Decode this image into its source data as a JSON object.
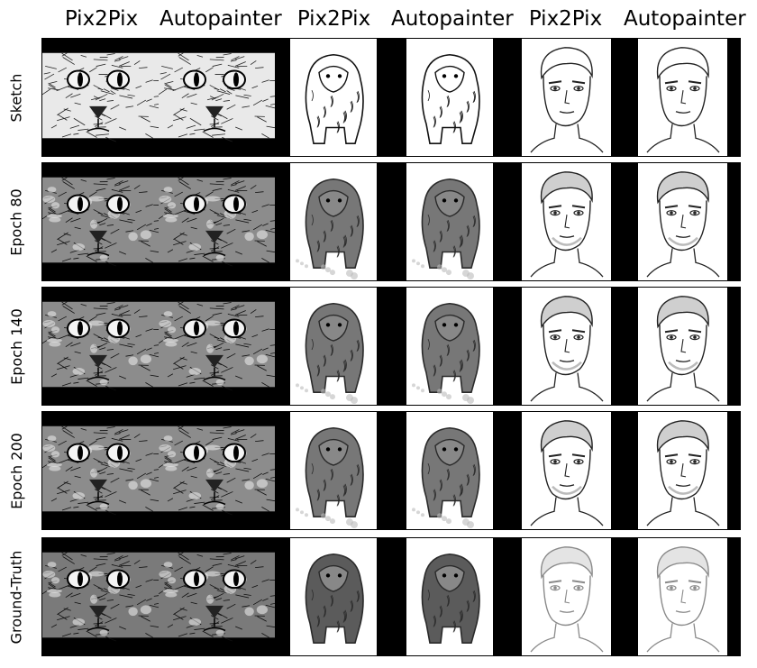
{
  "columns": [
    {
      "title": "Pix2Pix",
      "subject": "cat"
    },
    {
      "title": "Autopainter",
      "subject": "cat"
    },
    {
      "title": "Pix2Pix",
      "subject": "beast"
    },
    {
      "title": "Autopainter",
      "subject": "beast"
    },
    {
      "title": "Pix2Pix",
      "subject": "face"
    },
    {
      "title": "Autopainter",
      "subject": "face"
    }
  ],
  "rows": [
    {
      "label": "Sketch",
      "style": "sketch"
    },
    {
      "label": "Epoch 80",
      "style": "epoch"
    },
    {
      "label": "Epoch 140",
      "style": "epoch"
    },
    {
      "label": "Epoch 200",
      "style": "epoch"
    },
    {
      "label": "Ground-Truth",
      "style": "truth"
    }
  ],
  "colors": {
    "background": "#ffffff",
    "frame": "#000000",
    "ink": "#1a1a1a",
    "paper": "#ffffff"
  }
}
